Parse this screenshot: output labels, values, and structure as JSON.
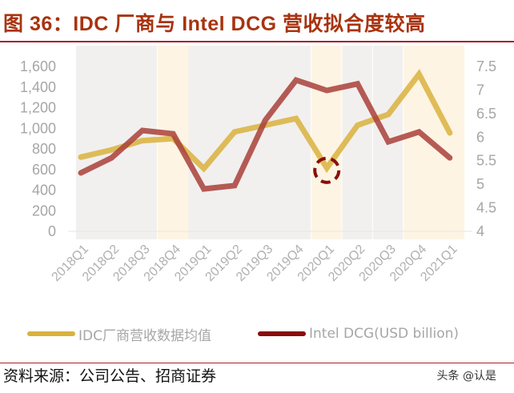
{
  "title": "图 36：IDC 厂商与 Intel DCG 营收拟合度较高",
  "footer": {
    "source": "资料来源：公司公告、招商证券",
    "watermark": "头条 @认是"
  },
  "colors": {
    "title": "#a8330f",
    "rule": "#a8202a",
    "idc_series": "#d9b23d",
    "intel_series": "#a9403a",
    "intel_legend": "#8b0c0c",
    "band_grey": "#f1f0ee",
    "band_yellow": "#fdf4e3",
    "highlight_circle": "#8b0c0c",
    "axis_text": "#a6a6a6"
  },
  "legend": [
    {
      "label": "IDC厂商营收数据均值",
      "color": "#d9b23d"
    },
    {
      "label": "Intel DCG(USD billion)",
      "color": "#8b0c0c"
    }
  ],
  "chart_data": {
    "type": "line",
    "title": "IDC 厂商与 Intel DCG 营收拟合度较高",
    "categories": [
      "2018Q1",
      "2018Q2",
      "2018Q3",
      "2018Q4",
      "2019Q1",
      "2019Q2",
      "2019Q3",
      "2019Q4",
      "2020Q1",
      "2020Q2",
      "2020Q3",
      "2020Q4",
      "2021Q1"
    ],
    "series": [
      {
        "name": "IDC厂商营收数据均值",
        "axis": "left",
        "values": [
          720,
          790,
          880,
          900,
          610,
          965,
          1030,
          1095,
          615,
          1030,
          1135,
          1525,
          955
        ]
      },
      {
        "name": "Intel DCG(USD billion)",
        "axis": "right",
        "values": [
          5.24,
          5.56,
          6.14,
          6.07,
          4.9,
          4.97,
          6.36,
          7.21,
          6.99,
          7.13,
          5.9,
          6.11,
          5.56
        ]
      }
    ],
    "left_axis": {
      "ticks": [
        "0",
        "200",
        "400",
        "600",
        "800",
        "1,000",
        "1,200",
        "1,400",
        "1,600"
      ],
      "ylim": [
        0,
        1600
      ]
    },
    "right_axis": {
      "ticks": [
        "4",
        "4.5",
        "5",
        "5.5",
        "6",
        "6.5",
        "7",
        "7.5"
      ],
      "ylim": [
        4,
        7.5
      ]
    },
    "xlabel": "",
    "ylabel": "",
    "grid": false,
    "legend_position": "bottom",
    "annotations": [
      {
        "type": "dashed-circle",
        "category": "2020Q1",
        "series": "IDC厂商营收数据均值"
      }
    ],
    "background_bands": [
      {
        "from": "2018Q1",
        "to": "2018Q3",
        "color": "grey"
      },
      {
        "from": "2018Q4",
        "to": "2019Q1",
        "color": "yellow"
      },
      {
        "from": "2019Q1",
        "to": "2019Q4",
        "color": "grey"
      },
      {
        "from": "2020Q1",
        "to": "2020Q1",
        "color": "yellow"
      },
      {
        "from": "2020Q2",
        "to": "2020Q2",
        "color": "grey"
      },
      {
        "from": "2020Q3",
        "to": "2020Q3",
        "color": "grey"
      },
      {
        "from": "2020Q4",
        "to": "2021Q1",
        "color": "yellow"
      }
    ]
  }
}
